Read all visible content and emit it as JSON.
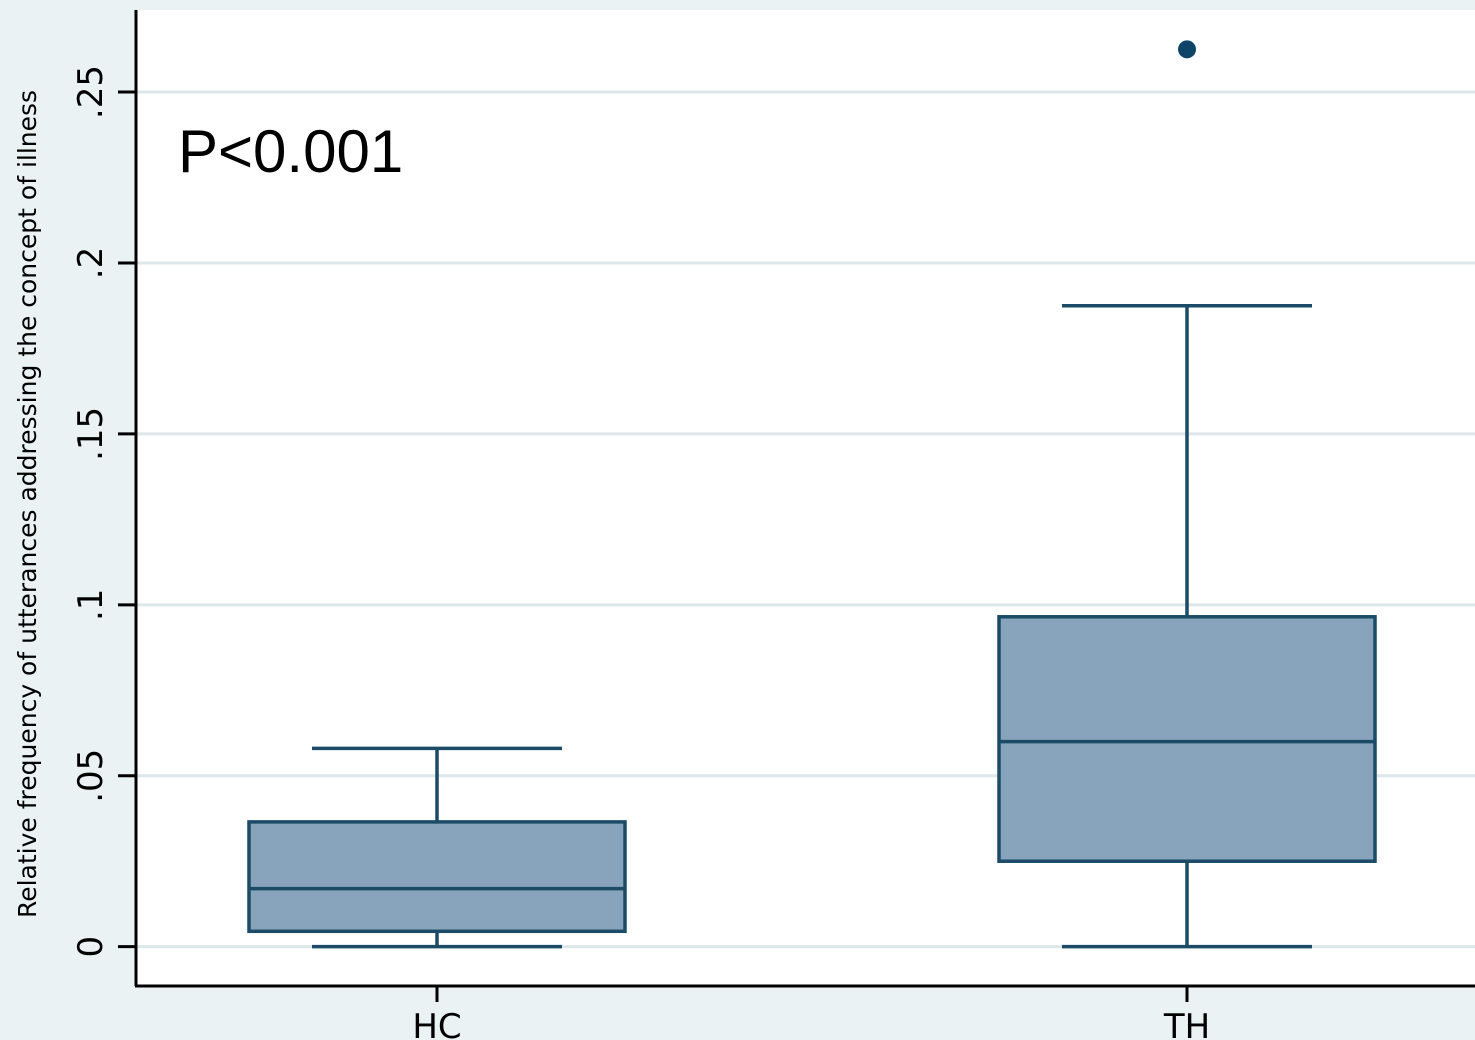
{
  "chart_data": {
    "type": "box",
    "title": "",
    "xlabel": "",
    "ylabel": "Relative frequency of utterances addressing the concept of illness",
    "ylim": [
      -0.0115,
      0.274
    ],
    "yticks": [
      0,
      0.05,
      0.1,
      0.15,
      0.2,
      0.25
    ],
    "ytick_labels": [
      "0",
      ".05",
      ".1",
      ".15",
      ".2",
      ".25"
    ],
    "grid": true,
    "annotation": "P<0.001",
    "categories": [
      "HC",
      "TH"
    ],
    "series": [
      {
        "category": "HC",
        "whisker_low": 0.0,
        "q1": 0.0045,
        "median": 0.017,
        "q3": 0.0365,
        "whisker_high": 0.058,
        "outliers": []
      },
      {
        "category": "TH",
        "whisker_low": 0.0,
        "q1": 0.025,
        "median": 0.06,
        "q3": 0.0965,
        "whisker_high": 0.1875,
        "outliers": [
          0.2625
        ]
      }
    ],
    "colors": {
      "box_fill": "#87a4bc",
      "box_stroke": "#1b4b66",
      "outlier": "#0e4468",
      "grid": "#dde7e9",
      "plot_bg": "#ffffff",
      "page_bg": "#eaf2f3"
    }
  }
}
